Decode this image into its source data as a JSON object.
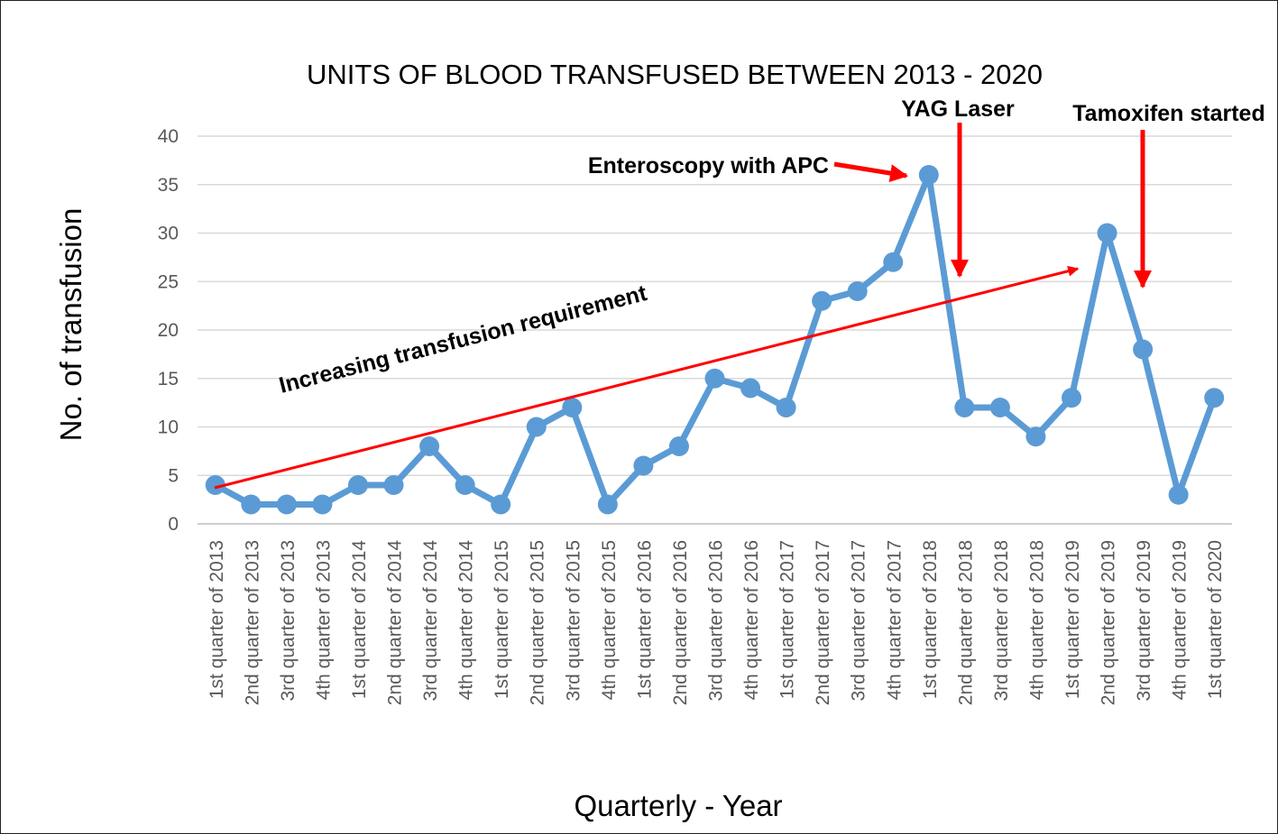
{
  "chart_data": {
    "type": "line",
    "title": "UNITS OF BLOOD TRANSFUSED BETWEEN 2013 - 2020",
    "xlabel": "Quarterly - Year",
    "ylabel": "No. of transfusion",
    "ylim": [
      0,
      40
    ],
    "yticks": [
      "0",
      "5",
      "10",
      "15",
      "20",
      "25",
      "30",
      "35",
      "40"
    ],
    "grid": true,
    "categories": [
      "1st quarter of 2013",
      "2nd quarter of 2013",
      "3rd quarter of 2013",
      "4th quarter of 2013",
      "1st quarter of 2014",
      "2nd quarter of 2014",
      "3rd quarter of 2014",
      "4th quarter of 2014",
      "1st quarter of 2015",
      "2nd quarter of 2015",
      "3rd quarter of 2015",
      "4th quarter of 2015",
      "1st quarter of 2016",
      "2nd quarter of 2016",
      "3rd quarter of 2016",
      "4th quarter of 2016",
      "1st quarter of 2017",
      "2nd quarter of 2017",
      "3rd quarter of 2017",
      "4th quarter of 2017",
      "1st quarter of 2018",
      "2nd quarter of 2018",
      "3rd quarter of 2018",
      "4th quarter of 2018",
      "1st quarter of 2019",
      "2nd quarter of 2019",
      "3rd quarter of 2019",
      "4th quarter of 2019",
      "1st quarter of 2020"
    ],
    "values": [
      4,
      2,
      2,
      2,
      4,
      4,
      8,
      4,
      2,
      10,
      12,
      2,
      6,
      8,
      15,
      14,
      12,
      23,
      24,
      27,
      36,
      12,
      12,
      9,
      13,
      30,
      18,
      3,
      13
    ],
    "series_color": "#5B9BD5",
    "annotation_color": "#FF0000",
    "annotations": {
      "trend": "Increasing transfusion requirement",
      "apc": "Enteroscopy with APC",
      "yag": "YAG Laser",
      "tamoxifen": "Tamoxifen started"
    }
  }
}
